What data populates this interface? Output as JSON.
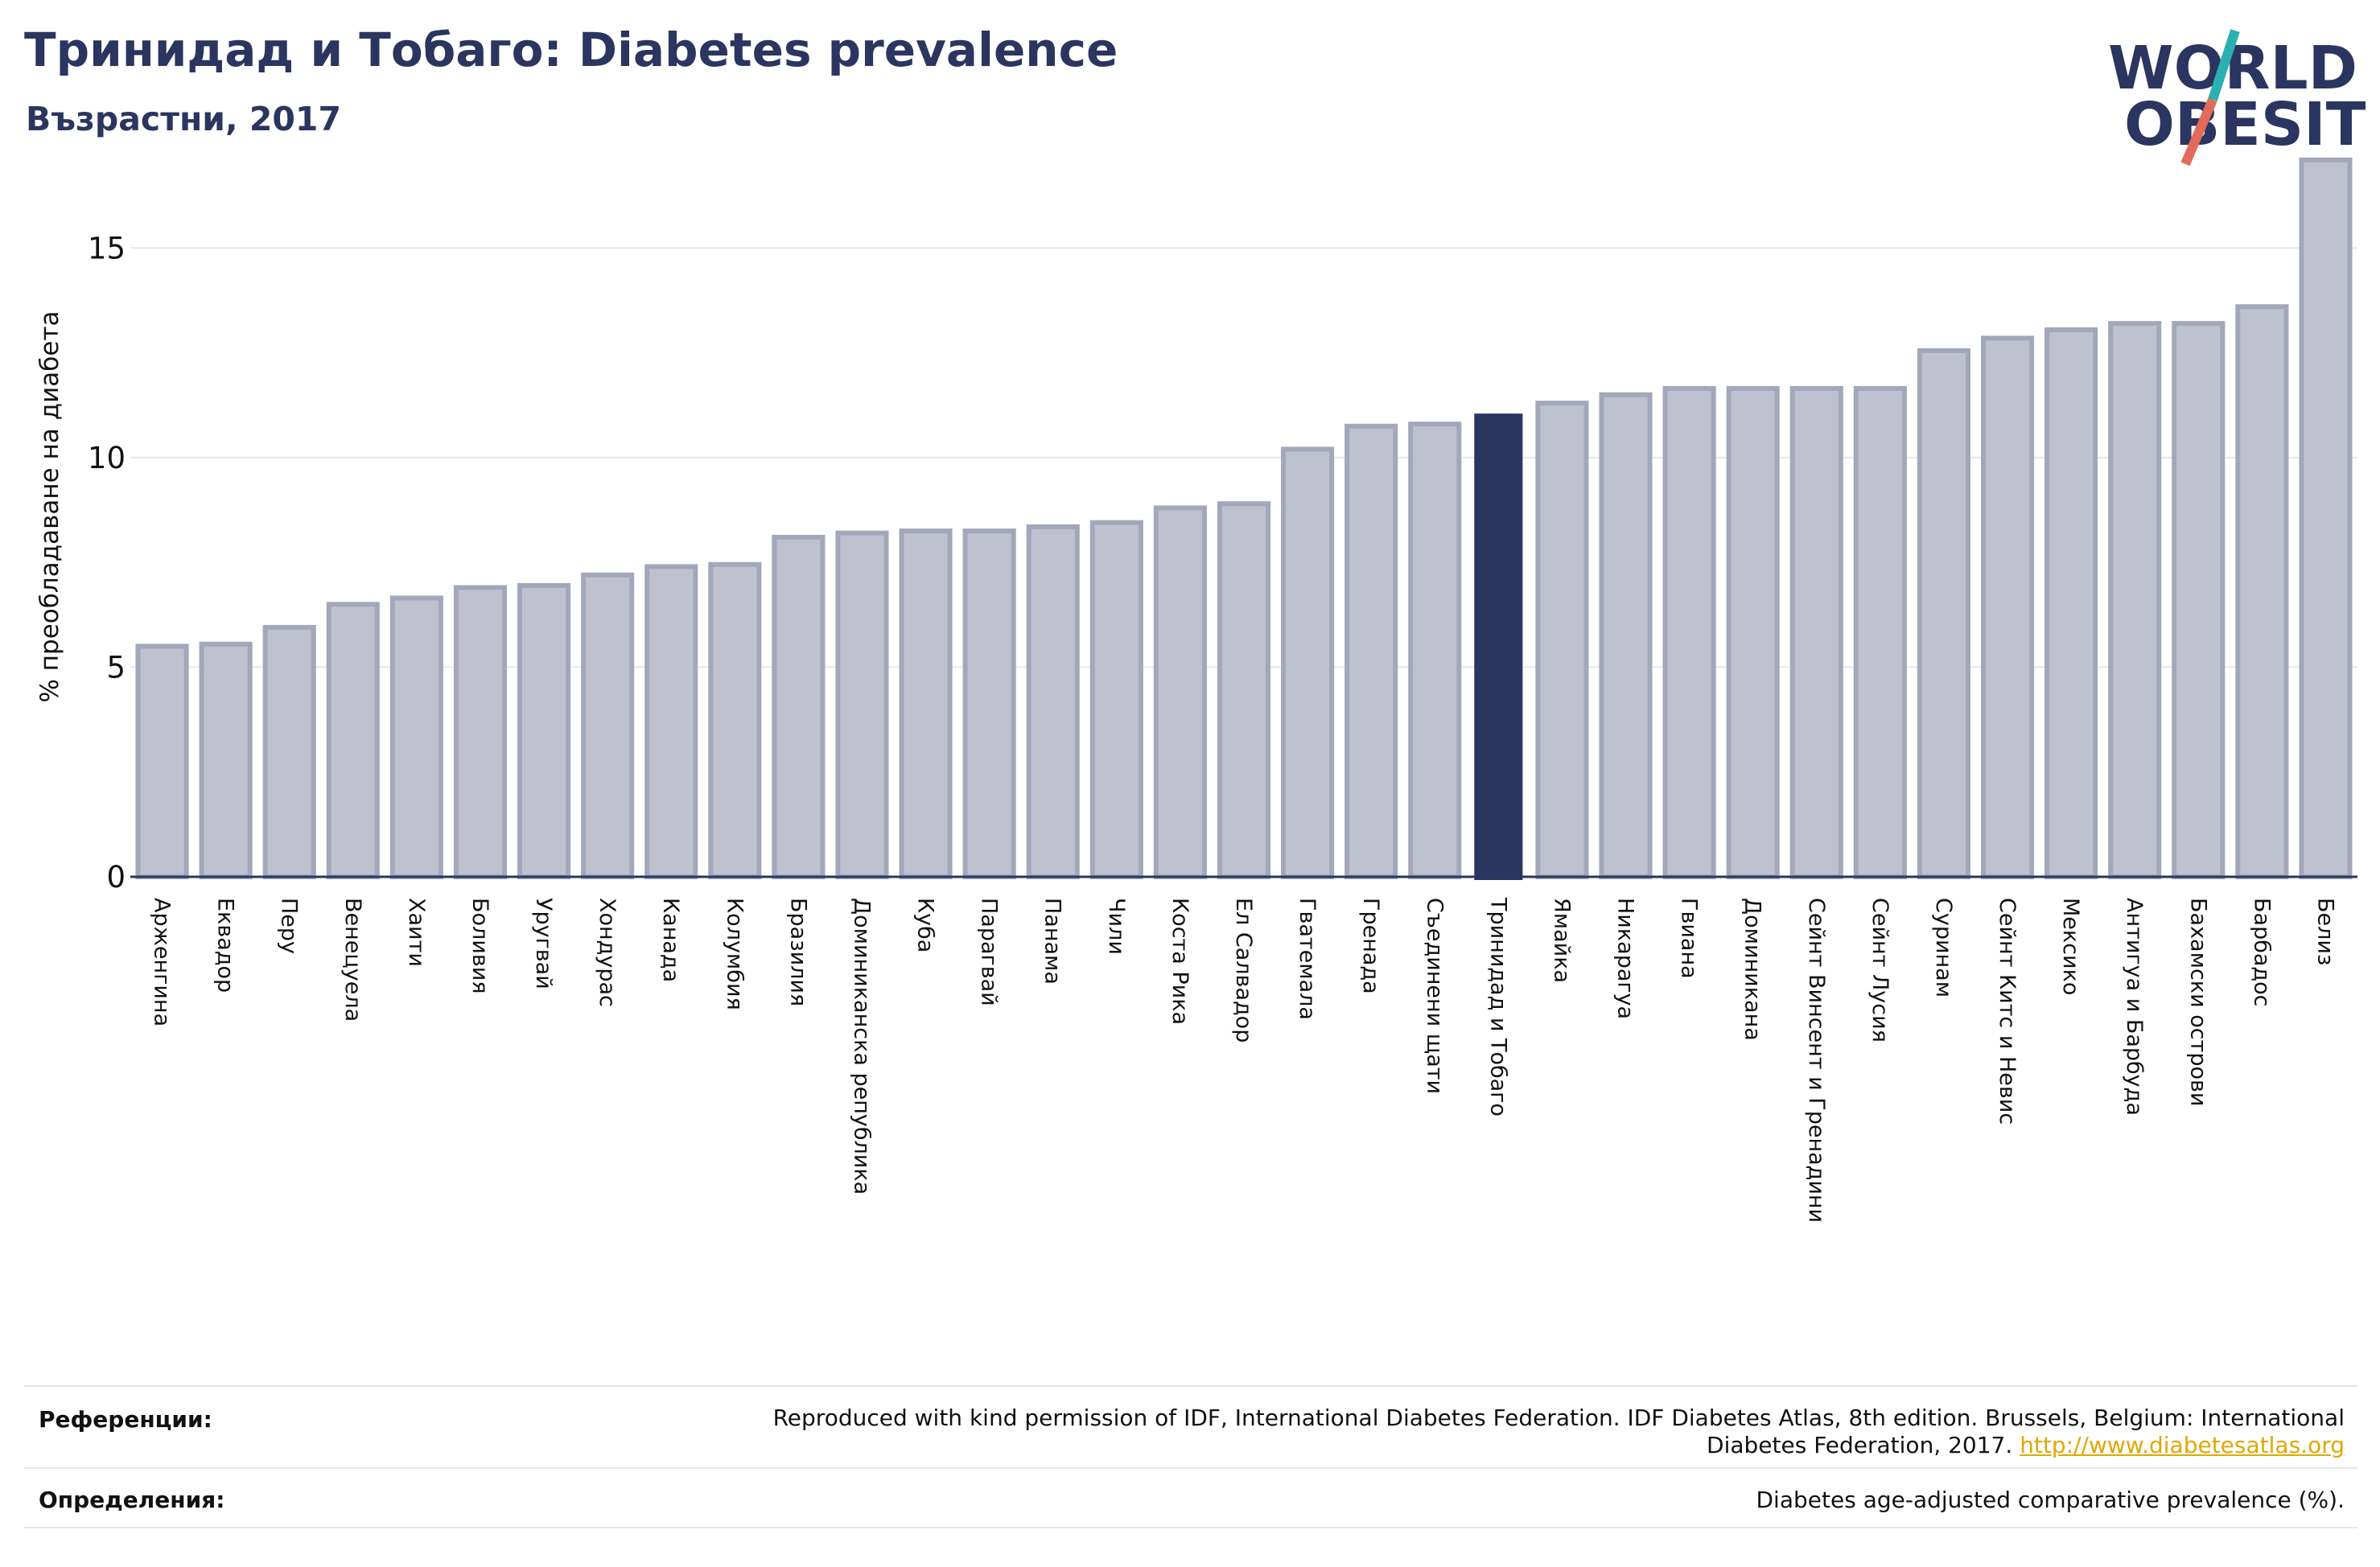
{
  "header": {
    "title": "Тринидад и Тобаго: Diabetes prevalence",
    "subtitle": "Възрастни, 2017"
  },
  "logo": {
    "line1": "WORLD",
    "line2": "OBESITY",
    "colors": {
      "text": "#2a3560",
      "slash_teal": "#2ab0b0",
      "slash_red": "#e26a5a"
    }
  },
  "chart_data": {
    "type": "bar",
    "title": "Тринидад и Тобаго: Diabetes prevalence",
    "subtitle": "Възрастни, 2017",
    "ylabel": "% преобладаване на диабета",
    "xlabel": "",
    "ylim": [
      0,
      17.5
    ],
    "yticks": [
      0,
      5,
      10,
      15
    ],
    "grid": true,
    "highlight": "Тринидад и Тобаго",
    "colors": {
      "bar": "#bfc2ce",
      "bar_border": "#a3a7bb",
      "highlight": "#2a3560",
      "axis": "#2a3560",
      "grid": "#e8e8e8"
    },
    "categories": [
      "Арженгина",
      "Еквадор",
      "Перу",
      "Венецуела",
      "Хаити",
      "Боливия",
      "Уругвай",
      "Хондурас",
      "Канада",
      "Колумбия",
      "Бразилия",
      "Доминиканска република",
      "Куба",
      "Парагвай",
      "Панама",
      "Чили",
      "Коста Рика",
      "Ел Салвадор",
      "Гватемала",
      "Гренада",
      "Съединени щати",
      "Тринидад и Тобаго",
      "Ямайка",
      "Никарагуа",
      "Гвиана",
      "Доминикана",
      "Сейнт Винсент и Гренадини",
      "Сейнт Лусия",
      "Суринам",
      "Сейнт Китс и Невис",
      "Мексико",
      "Антигуа и Барбуда",
      "Бахамски острови",
      "Барбадос",
      "Белиз"
    ],
    "values": [
      5.5,
      5.55,
      5.95,
      6.5,
      6.65,
      6.9,
      6.95,
      7.2,
      7.4,
      7.45,
      8.1,
      8.2,
      8.25,
      8.25,
      8.35,
      8.45,
      8.8,
      8.9,
      10.2,
      10.75,
      10.8,
      11.05,
      11.3,
      11.5,
      11.65,
      11.65,
      11.65,
      11.65,
      12.55,
      12.85,
      13.05,
      13.2,
      13.2,
      13.6,
      17.1
    ]
  },
  "footer": {
    "references_label": "Референции:",
    "references_text": "Reproduced with kind permission of IDF, International Diabetes Federation. IDF Diabetes Atlas, 8th edition. Brussels, Belgium: International",
    "references_text2": "Diabetes Federation, 2017.",
    "references_link": "http://www.diabetesatlas.org",
    "definitions_label": "Определения:",
    "definitions_text": "Diabetes age-adjusted comparative prevalence (%)."
  }
}
